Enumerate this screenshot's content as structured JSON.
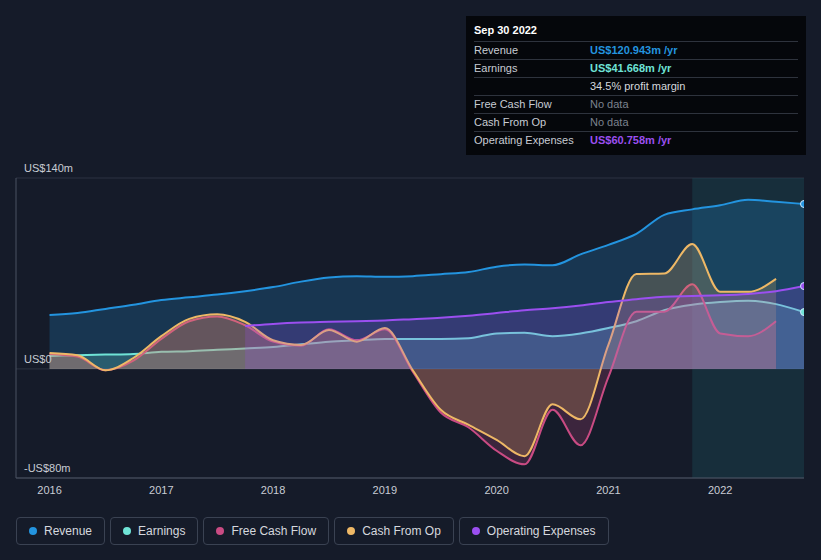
{
  "chart_data": {
    "type": "area",
    "x": [
      2016,
      2016.25,
      2016.5,
      2016.75,
      2017,
      2017.25,
      2017.5,
      2017.75,
      2018,
      2018.25,
      2018.5,
      2018.75,
      2019,
      2019.25,
      2019.5,
      2019.75,
      2020,
      2020.25,
      2020.5,
      2020.75,
      2021,
      2021.25,
      2021.5,
      2021.75,
      2022,
      2022.25,
      2022.5,
      2022.75
    ],
    "xlim": [
      2015.7,
      2022.75
    ],
    "xticks": [
      2016,
      2017,
      2018,
      2019,
      2020,
      2021,
      2022
    ],
    "ylim": [
      -80,
      140
    ],
    "yticks": [
      {
        "value": 140,
        "label": "US$140m"
      },
      {
        "value": 0,
        "label": "US$0"
      },
      {
        "value": -80,
        "label": "-US$80m"
      }
    ],
    "grid": true,
    "legend": "bottom-left",
    "series": [
      {
        "name": "Revenue",
        "color": "#2394df",
        "marker": "end",
        "values": [
          39.6,
          41,
          44,
          47,
          50.5,
          52.5,
          54.5,
          57,
          60,
          64,
          67,
          68,
          67.5,
          68,
          69.5,
          71,
          75,
          76.5,
          76,
          84,
          91,
          99,
          113,
          117,
          120,
          124,
          122.5,
          120.943
        ]
      },
      {
        "name": "Earnings",
        "color": "#6fe3d6",
        "marker": "end",
        "values": [
          9.5,
          10,
          10.5,
          11,
          12.5,
          13,
          14,
          15,
          16,
          18,
          20,
          21,
          22,
          22,
          22,
          22.5,
          26,
          26.5,
          24,
          26,
          30,
          35,
          43,
          47,
          49,
          50,
          47.5,
          41.668
        ]
      },
      {
        "name": "Free Cash Flow",
        "color": "#c94b83",
        "values": [
          11,
          9,
          -1,
          6,
          22,
          35,
          38.5,
          32,
          20,
          17,
          29,
          21,
          29,
          -2,
          -32,
          -43,
          -60,
          -70,
          -30,
          -56,
          -6,
          42,
          42,
          62,
          26,
          24,
          35,
          null
        ]
      },
      {
        "name": "Cash From Op",
        "color": "#eeb866",
        "values": [
          11.7,
          10,
          -1,
          8,
          24,
          36.7,
          40,
          34.5,
          21,
          17.6,
          28.6,
          20,
          30,
          -1,
          -30,
          -41,
          -52,
          -64,
          -26,
          -37,
          17.6,
          69.6,
          70,
          91.6,
          56.5,
          56.5,
          66,
          null
        ]
      },
      {
        "name": "Operating Expenses",
        "color": "#9b4ff0",
        "marker": "end",
        "values": [
          null,
          null,
          null,
          null,
          null,
          null,
          null,
          31.5,
          33,
          34,
          34.5,
          35,
          35.5,
          36.5,
          37.5,
          39,
          41,
          43,
          44.5,
          46.5,
          49,
          51,
          53,
          53.5,
          54,
          55,
          57,
          60.758
        ]
      }
    ],
    "annotation": {
      "title": "Sep 30 2022",
      "rows": [
        {
          "label": "Revenue",
          "text": "US$120.943m /yr",
          "color": "#2394df"
        },
        {
          "label": "Earnings",
          "text": "US$41.668m /yr",
          "color": "#6fe3d6"
        },
        {
          "text": "34.5% profit margin"
        },
        {
          "label": "Free Cash Flow",
          "text": "No data"
        },
        {
          "label": "Cash From Op",
          "text": "No data"
        },
        {
          "label": "Operating Expenses",
          "text": "US$60.758m /yr",
          "color": "#9b4ff0"
        }
      ]
    }
  }
}
